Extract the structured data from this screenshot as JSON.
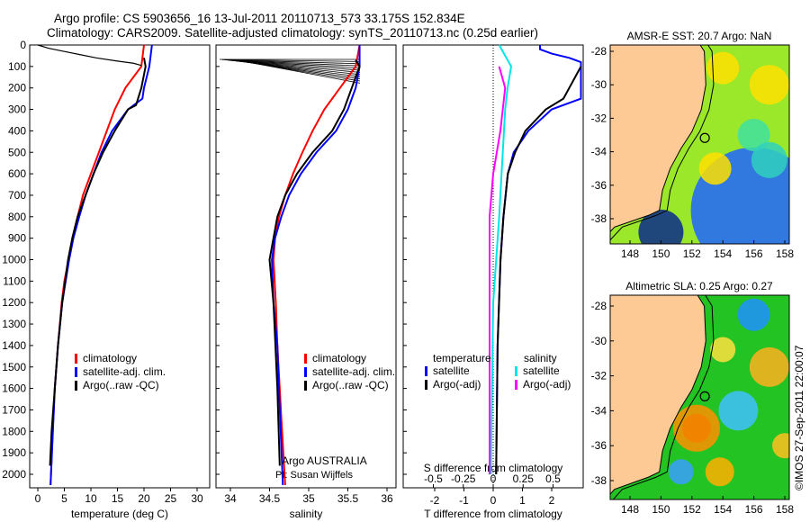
{
  "title": {
    "line1": "Argo profile: CS 5903656_16 13-Jul-2011 20110713_573 33.175S 152.834E",
    "line2": "Climatology: CARS2009. Satellite-adjusted climatology: synTS_20110713.nc (0.25d earlier)"
  },
  "credit": "©IMOS 27-Sep-2011 22:00:07",
  "chart_data": [
    {
      "type": "line",
      "name": "temperature",
      "xlabel": "temperature (deg C)",
      "ylabel": "depth",
      "xlim": [
        -2,
        32
      ],
      "ylim": [
        2060,
        0
      ],
      "xticks": [
        0,
        5,
        10,
        15,
        20,
        25,
        30
      ],
      "yticks": [
        0,
        100,
        200,
        300,
        400,
        500,
        600,
        700,
        800,
        900,
        1000,
        1100,
        1200,
        1300,
        1400,
        1500,
        1600,
        1700,
        1800,
        1900,
        2000
      ],
      "legend": [
        "climatology",
        "satellite-adj. clim.",
        "Argo(..raw -QC)"
      ],
      "legend_position": "lower-middle",
      "series": [
        {
          "name": "climatology",
          "color": "#ff0000",
          "depth": [
            0,
            100,
            200,
            300,
            400,
            500,
            600,
            700,
            800,
            900,
            1000,
            1100,
            1200,
            1400,
            1600,
            1800,
            2050
          ],
          "values": [
            20,
            19.5,
            16.5,
            14.5,
            13,
            11.5,
            10,
            8.5,
            7.5,
            6.5,
            5.8,
            5,
            4.5,
            3.8,
            3.2,
            2.8,
            2.4
          ]
        },
        {
          "name": "satellite-adj. clim.",
          "color": "#0000ff",
          "depth": [
            0,
            100,
            200,
            250,
            300,
            400,
            500,
            600,
            700,
            800,
            900,
            1000,
            1200,
            1400,
            1600,
            2050
          ],
          "values": [
            21.5,
            21,
            20,
            19.7,
            17,
            14,
            12,
            10.5,
            9,
            7.8,
            6.7,
            5.9,
            4.6,
            3.8,
            3.2,
            2.4
          ]
        },
        {
          "name": "Argo(..raw -QC)",
          "color": "#000000",
          "depth": [
            60,
            100,
            200,
            280,
            300,
            400,
            500,
            600,
            700,
            800,
            900,
            1000,
            1200,
            1400,
            1600,
            1800,
            1960
          ],
          "values": [
            20,
            20.3,
            19.5,
            18.5,
            17,
            14.5,
            12.3,
            10.5,
            9,
            7.5,
            6.5,
            5.7,
            4.6,
            3.8,
            3.2,
            2.6,
            2.3
          ]
        },
        {
          "name": "Argo raw",
          "color": "#000000",
          "depth": [
            0,
            15,
            30,
            45,
            60,
            75,
            85,
            95
          ],
          "values": [
            0,
            2,
            5,
            8,
            11,
            15,
            18,
            19.5
          ]
        }
      ]
    },
    {
      "type": "line",
      "name": "salinity",
      "xlabel": "salinity",
      "xlim": [
        33.8,
        36.1
      ],
      "ylim": [
        2060,
        0
      ],
      "xticks": [
        34,
        34.5,
        35,
        35.5,
        36
      ],
      "legend": [
        "climatology",
        "satellite-adj. clim.",
        "Argo(..raw -QC)"
      ],
      "annotation": [
        "Argo AUSTRALIA",
        "PI: Susan Wijffels"
      ],
      "series": [
        {
          "name": "climatology",
          "color": "#ff0000",
          "depth": [
            0,
            100,
            200,
            300,
            400,
            500,
            600,
            700,
            800,
            900,
            1000,
            1200,
            1400,
            1600,
            1800,
            2050
          ],
          "values": [
            35.65,
            35.6,
            35.4,
            35.2,
            35.05,
            34.92,
            34.8,
            34.7,
            34.62,
            34.57,
            34.55,
            34.58,
            34.6,
            34.63,
            34.66,
            34.7
          ]
        },
        {
          "name": "satellite-adj. clim.",
          "color": "#0000ff",
          "depth": [
            0,
            100,
            200,
            300,
            400,
            500,
            600,
            700,
            800,
            900,
            1000,
            1200,
            1400,
            1600,
            2050
          ],
          "values": [
            35.65,
            35.65,
            35.6,
            35.5,
            35.35,
            35.1,
            34.9,
            34.75,
            34.65,
            34.57,
            34.53,
            34.55,
            34.6,
            34.62,
            34.67
          ]
        },
        {
          "name": "Argo(..raw -QC)",
          "color": "#000000",
          "depth": [
            70,
            100,
            200,
            300,
            400,
            500,
            600,
            700,
            800,
            900,
            1000,
            1200,
            1600,
            1960
          ],
          "values": [
            35.6,
            35.65,
            35.55,
            35.45,
            35.3,
            35.05,
            34.85,
            34.7,
            34.6,
            34.55,
            34.5,
            34.55,
            34.6,
            34.63
          ]
        }
      ]
    },
    {
      "type": "line",
      "name": "differences",
      "xlabel": "T difference from climatology",
      "x2label": "S difference from climatology",
      "xlim": [
        -3,
        3
      ],
      "x2lim": [
        -0.7,
        0.7
      ],
      "xticks": [
        -2,
        -1,
        0,
        1,
        2
      ],
      "x2ticks": [
        -0.5,
        -0.25,
        0,
        0.25,
        0.5
      ],
      "x2ticklabels": [
        "-0.5",
        "-0.25",
        "0",
        "0.25",
        "0.5"
      ],
      "legend_headers": [
        "temperature",
        "salinity"
      ],
      "legend": [
        "satellite",
        "Argo(-adj)",
        "satellite",
        "Argo(-adj)"
      ],
      "series": [
        {
          "name": "T satellite",
          "axis": "T",
          "color": "#0000ff",
          "depth": [
            0,
            20,
            40,
            60,
            80,
            250,
            300,
            400,
            500,
            600,
            800,
            1000,
            1400,
            2000
          ],
          "values": [
            1.6,
            1.6,
            2.0,
            2.6,
            3,
            3,
            2.0,
            1.2,
            0.7,
            0.5,
            0.35,
            0.25,
            0.15,
            0.1
          ]
        },
        {
          "name": "T Argo(-adj)",
          "axis": "T",
          "color": "#000000",
          "depth": [
            100,
            250,
            300,
            400,
            500,
            600,
            800,
            1000,
            1400,
            2000
          ],
          "values": [
            3,
            2.4,
            1.8,
            1.1,
            0.75,
            0.5,
            0.35,
            0.25,
            0.15,
            0.1
          ]
        },
        {
          "name": "S satellite",
          "axis": "S",
          "color": "#00e5e5",
          "depth": [
            0,
            100,
            200,
            300,
            500,
            800,
            1200,
            2000
          ],
          "values": [
            0.05,
            0.15,
            0.12,
            0.1,
            0.08,
            0.05,
            0,
            -0.02
          ]
        },
        {
          "name": "S Argo(-adj)",
          "axis": "S",
          "color": "#ff00ff",
          "depth": [
            100,
            200,
            400,
            600,
            800,
            1000,
            2000
          ],
          "values": [
            0.05,
            0.1,
            0.06,
            0,
            -0.03,
            -0.03,
            -0.03
          ]
        }
      ]
    }
  ],
  "maps": [
    {
      "title": "AMSR-E SST: 20.7 Argo: NaN",
      "lon_ticks": [
        "148",
        "150",
        "152",
        "154",
        "156",
        "158"
      ],
      "lat_ticks": [
        "-28",
        "-30",
        "-32",
        "-34",
        "-36",
        "-38"
      ]
    },
    {
      "title": "Altimetric SLA: 0.25 Argo: 0.27",
      "lon_ticks": [
        "148",
        "150",
        "152",
        "154",
        "156",
        "158"
      ],
      "lat_ticks": [
        "-28",
        "-30",
        "-32",
        "-34",
        "-36",
        "-38"
      ]
    }
  ]
}
